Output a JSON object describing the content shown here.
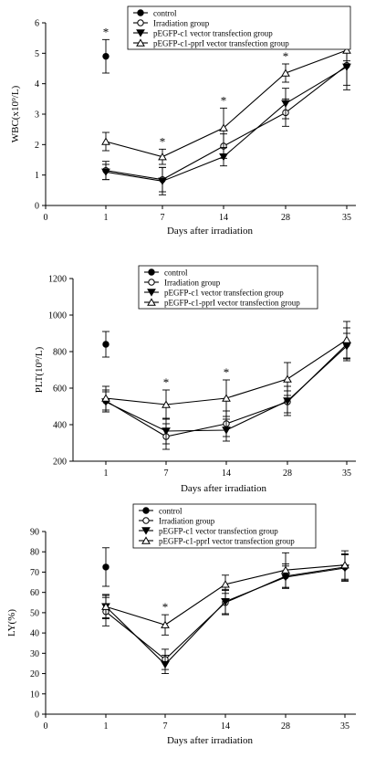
{
  "chart_data": [
    {
      "type": "line",
      "ylabel": "WBC(x10⁹/L)",
      "xlabel": "Days after irradiation",
      "x_ticks": [
        "0",
        "1",
        "7",
        "14",
        "28",
        "35"
      ],
      "y_ticks": [
        "0",
        "1",
        "2",
        "3",
        "4",
        "5",
        "6"
      ],
      "ylim": [
        0,
        6
      ],
      "categories": [
        "1",
        "7",
        "14",
        "28",
        "35"
      ],
      "legend_position": "top-right",
      "series": [
        {
          "name": "control",
          "marker": "filled-circle",
          "values": [
            4.9,
            null,
            null,
            null,
            null
          ],
          "errors": [
            0.55,
            null,
            null,
            null,
            null
          ]
        },
        {
          "name": "Irradiation group",
          "marker": "open-circle",
          "values": [
            1.15,
            0.85,
            1.95,
            3.05,
            4.6
          ],
          "errors": [
            0.3,
            0.4,
            0.4,
            0.45,
            0.8
          ]
        },
        {
          "name": "pEGFP-c1 vector transfection group",
          "marker": "filled-triangle",
          "values": [
            1.1,
            0.8,
            1.6,
            3.35,
            4.55
          ],
          "errors": [
            0.25,
            0.45,
            0.3,
            0.5,
            0.6
          ]
        },
        {
          "name": "pEGFP-c1-pprI vector transfection group",
          "marker": "open-triangle",
          "values": [
            2.1,
            1.6,
            2.55,
            4.35,
            5.1
          ],
          "errors": [
            0.3,
            0.25,
            0.65,
            0.3,
            0.35
          ]
        }
      ],
      "annotations": [
        {
          "x": "1",
          "text": "*"
        },
        {
          "x": "7",
          "text": "*"
        },
        {
          "x": "14",
          "text": "*"
        },
        {
          "x": "28",
          "text": "*"
        }
      ]
    },
    {
      "type": "line",
      "ylabel": "PLT(10⁹/L)",
      "xlabel": "Days after irradiation",
      "x_ticks": [
        "1",
        "7",
        "14",
        "28",
        "35"
      ],
      "y_ticks": [
        "200",
        "400",
        "600",
        "800",
        "1000",
        "1200"
      ],
      "ylim": [
        200,
        1200
      ],
      "categories": [
        "1",
        "7",
        "14",
        "28",
        "35"
      ],
      "legend_position": "top-left",
      "series": [
        {
          "name": "control",
          "marker": "filled-circle",
          "values": [
            840,
            null,
            null,
            null,
            null
          ],
          "errors": [
            70,
            null,
            null,
            null,
            null
          ]
        },
        {
          "name": "Irradiation group",
          "marker": "open-circle",
          "values": [
            530,
            335,
            405,
            525,
            840
          ],
          "errors": [
            60,
            70,
            70,
            60,
            90
          ]
        },
        {
          "name": "pEGFP-c1 vector transfection group",
          "marker": "filled-triangle",
          "values": [
            525,
            365,
            370,
            530,
            830
          ],
          "errors": [
            55,
            70,
            60,
            80,
            70
          ]
        },
        {
          "name": "pEGFP-c1-pprI vector transfection group",
          "marker": "open-triangle",
          "values": [
            545,
            510,
            545,
            650,
            865
          ],
          "errors": [
            65,
            80,
            100,
            90,
            100
          ]
        }
      ],
      "annotations": [
        {
          "x": "7",
          "text": "*"
        },
        {
          "x": "14",
          "text": "*"
        }
      ]
    },
    {
      "type": "line",
      "ylabel": "LY(%)",
      "xlabel": "Days after irradiation",
      "x_ticks": [
        "0",
        "1",
        "7",
        "14",
        "28",
        "35"
      ],
      "y_ticks": [
        "0",
        "10",
        "20",
        "30",
        "40",
        "50",
        "60",
        "70",
        "80",
        "90"
      ],
      "ylim": [
        0,
        90
      ],
      "categories": [
        "1",
        "7",
        "14",
        "28",
        "35"
      ],
      "legend_position": "top-left",
      "series": [
        {
          "name": "control",
          "marker": "filled-circle",
          "values": [
            72.5,
            null,
            null,
            null,
            null
          ],
          "errors": [
            9.5,
            null,
            null,
            null,
            null
          ]
        },
        {
          "name": "Irradiation group",
          "marker": "open-circle",
          "values": [
            50.5,
            27,
            55,
            68,
            72.5
          ],
          "errors": [
            7,
            5,
            6,
            6,
            6.5
          ]
        },
        {
          "name": "pEGFP-c1 vector transfection group",
          "marker": "filled-triangle",
          "values": [
            53,
            24.5,
            55.5,
            67.5,
            72
          ],
          "errors": [
            5.5,
            4.5,
            6,
            5.5,
            6.5
          ]
        },
        {
          "name": "pEGFP-c1-pprI vector transfection group",
          "marker": "open-triangle",
          "values": [
            53,
            44,
            64,
            71,
            73.5
          ],
          "errors": [
            6,
            5,
            4.5,
            8.5,
            7
          ]
        }
      ],
      "annotations": [
        {
          "x": "7",
          "text": "*"
        }
      ]
    }
  ]
}
